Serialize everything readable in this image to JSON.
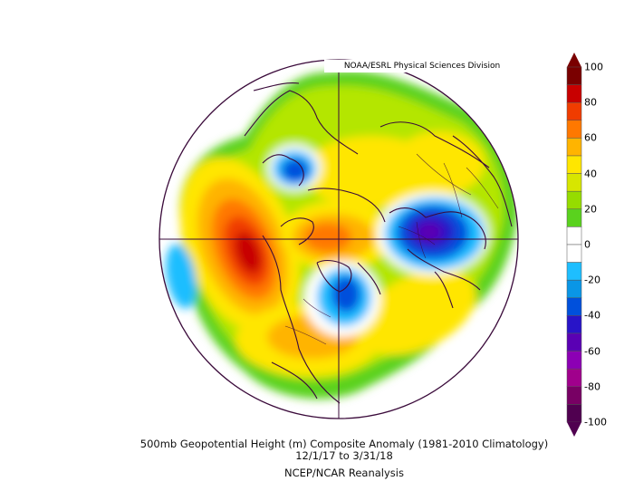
{
  "map": {
    "credit": "NOAA/ESRL Physical Sciences Division",
    "title_line1": "500mb Geopotential Height (m) Composite Anomaly (1981-2010 Climatology)",
    "title_line2": "12/1/17  to 3/31/18",
    "title_line3": "NCEP/NCAR Reanalysis",
    "projection": "north polar stereographic"
  },
  "colorbar": {
    "labels": [
      "100",
      "80",
      "60",
      "40",
      "20",
      "0",
      "-20",
      "-40",
      "-60",
      "-80",
      "-100"
    ],
    "colors": [
      "#7a0000",
      "#c80000",
      "#f03c00",
      "#ff7800",
      "#ffb400",
      "#ffe600",
      "#d7e600",
      "#96dc00",
      "#5ad21e",
      "#ffffff",
      "#ffffff",
      "#1ebeff",
      "#0a96e6",
      "#0050dc",
      "#2814c8",
      "#5a00b4",
      "#8c00b4",
      "#a0008c",
      "#780064",
      "#500050"
    ]
  },
  "anomaly_centers": [
    {
      "name": "ridge-west-coast-north-america",
      "value": 100,
      "color": "#d91e00"
    },
    {
      "name": "ridge-bering-strait",
      "value": 60,
      "color": "#ffdc00"
    },
    {
      "name": "ridge-greenland",
      "value": 80,
      "color": "#ff9600"
    },
    {
      "name": "ridge-central-north-atlantic",
      "value": 60,
      "color": "#ffdc00"
    },
    {
      "name": "trough-eastern-siberia",
      "value": -40,
      "color": "#1e3cdc"
    },
    {
      "name": "trough-eastern-north-america",
      "value": -40,
      "color": "#1e3cdc"
    },
    {
      "name": "trough-northern-europe-scandinavia",
      "value": -60,
      "color": "#5a14c8"
    },
    {
      "name": "trough-subtropical-pacific",
      "value": -20,
      "color": "#1ebeff"
    }
  ]
}
